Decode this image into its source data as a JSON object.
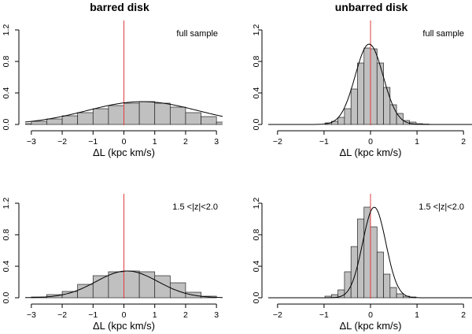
{
  "columns": {
    "left_title": "barred disk",
    "right_title": "unbarred disk"
  },
  "chart_data": [
    {
      "type": "bar",
      "panel": "top-left",
      "annotation": "full sample",
      "xlabel": "ΔL (kpc km/s)",
      "ylabel": "",
      "xlim": [
        -3.2,
        3.2
      ],
      "ylim": [
        0,
        1.3
      ],
      "xticks": [
        -3,
        -2,
        -1,
        0,
        1,
        2,
        3
      ],
      "yticks": [
        0.0,
        0.4,
        0.8,
        1.2
      ],
      "ytick_labels": [
        "0.0",
        "0.4",
        "0.8",
        "1.2"
      ],
      "vline_x": 0,
      "bin_width": 0.5,
      "bin_starts": [
        -3.5,
        -3.0,
        -2.5,
        -2.0,
        -1.5,
        -1.0,
        -0.5,
        0.0,
        0.5,
        1.0,
        1.5,
        2.0,
        2.5,
        3.0
      ],
      "values": [
        0.01,
        0.04,
        0.07,
        0.11,
        0.15,
        0.2,
        0.24,
        0.27,
        0.29,
        0.27,
        0.22,
        0.15,
        0.1,
        0.03
      ],
      "curve": {
        "type": "gaussian",
        "amp": 0.29,
        "mu": 0.6,
        "sigma": 1.8
      }
    },
    {
      "type": "bar",
      "panel": "top-right",
      "annotation": "full sample",
      "xlabel": "ΔL (kpc km/s)",
      "ylabel": "",
      "xlim": [
        -2.2,
        2.2
      ],
      "ylim": [
        0,
        1.3
      ],
      "xticks": [
        -2,
        -1,
        0,
        1,
        2
      ],
      "yticks": [
        0.0,
        0.4,
        0.8,
        1.2
      ],
      "ytick_labels": [
        "0.0",
        "0.4",
        "0.8",
        "1.2"
      ],
      "vline_x": 0,
      "bin_width": 0.14,
      "bin_starts": [
        -0.98,
        -0.84,
        -0.7,
        -0.56,
        -0.42,
        -0.28,
        -0.14,
        0.0,
        0.14,
        0.28,
        0.42,
        0.56,
        0.7,
        0.84,
        0.98,
        1.12
      ],
      "values": [
        0.02,
        0.04,
        0.09,
        0.2,
        0.45,
        0.78,
        0.97,
        0.96,
        0.78,
        0.47,
        0.25,
        0.14,
        0.05,
        0.03,
        0.01,
        0.005
      ],
      "curve": {
        "type": "gaussian",
        "amp": 1.02,
        "mu": -0.03,
        "sigma": 0.3
      }
    },
    {
      "type": "bar",
      "panel": "bottom-left",
      "annotation": "1.5 <|z|<2.0",
      "xlabel": "ΔL (kpc km/s)",
      "ylabel": "",
      "xlim": [
        -3.2,
        3.2
      ],
      "ylim": [
        0,
        1.3
      ],
      "xticks": [
        -3,
        -2,
        -1,
        0,
        1,
        2,
        3
      ],
      "yticks": [
        0.0,
        0.4,
        0.8,
        1.2
      ],
      "ytick_labels": [
        "0.0",
        "0.4",
        "0.8",
        "1.2"
      ],
      "vline_x": 0,
      "bin_width": 0.5,
      "bin_starts": [
        -3.0,
        -2.5,
        -2.0,
        -1.5,
        -1.0,
        -0.5,
        0.0,
        0.5,
        1.0,
        1.5,
        2.0,
        2.5
      ],
      "values": [
        0.01,
        0.04,
        0.08,
        0.17,
        0.28,
        0.33,
        0.34,
        0.33,
        0.28,
        0.19,
        0.07,
        0.02
      ],
      "curve": {
        "type": "gaussian",
        "amp": 0.34,
        "mu": 0.1,
        "sigma": 1.0
      }
    },
    {
      "type": "bar",
      "panel": "bottom-right",
      "annotation": "1.5 <|z|<2.0",
      "xlabel": "ΔL (kpc km/s)",
      "ylabel": "",
      "xlim": [
        -2.2,
        2.2
      ],
      "ylim": [
        0,
        1.3
      ],
      "xticks": [
        -2,
        -1,
        0,
        1,
        2
      ],
      "yticks": [
        0.0,
        0.4,
        0.8,
        1.2
      ],
      "ytick_labels": [
        "0.0",
        "0.4",
        "0.8",
        "1.2"
      ],
      "vline_x": 0,
      "bin_width": 0.14,
      "bin_starts": [
        -0.98,
        -0.84,
        -0.7,
        -0.56,
        -0.42,
        -0.28,
        -0.14,
        0.0,
        0.14,
        0.28,
        0.42,
        0.56,
        0.7,
        0.84
      ],
      "values": [
        0.02,
        0.04,
        0.1,
        0.33,
        0.65,
        1.0,
        1.15,
        0.9,
        0.58,
        0.3,
        0.13,
        0.05,
        0.02,
        0.01
      ],
      "curve": {
        "type": "gaussian",
        "amp": 1.15,
        "mu": 0.08,
        "sigma": 0.25
      }
    }
  ]
}
